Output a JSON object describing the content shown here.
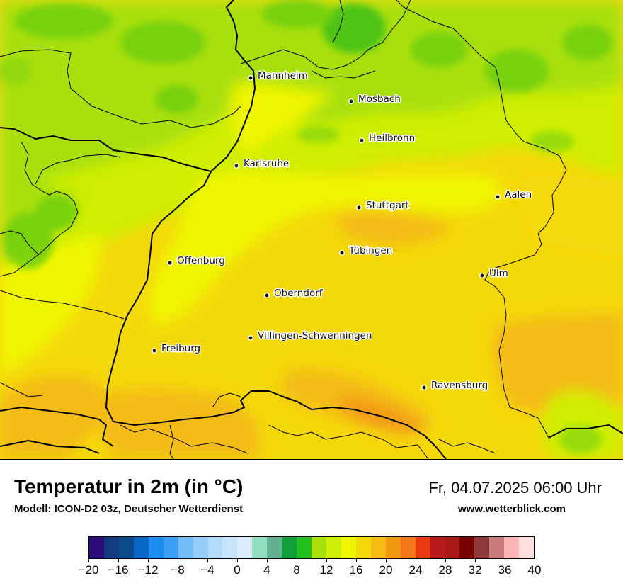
{
  "map": {
    "cities": [
      {
        "name": "Mannheim"
      },
      {
        "name": "Mosbach"
      },
      {
        "name": "Heilbronn"
      },
      {
        "name": "Karlsruhe"
      },
      {
        "name": "Aalen"
      },
      {
        "name": "Stuttgart"
      },
      {
        "name": "Tübingen"
      },
      {
        "name": "Offenburg"
      },
      {
        "name": "Ulm"
      },
      {
        "name": "Oberndorf"
      },
      {
        "name": "Villingen-Schwenningen"
      },
      {
        "name": "Freiburg"
      },
      {
        "name": "Ravensburg"
      }
    ]
  },
  "header": {
    "title": "Temperatur in 2m (in °C)",
    "subtitle": "Modell: ICON-D2 03z, Deutscher Wetterdienst",
    "datetime": "Fr, 04.07.2025 06:00 Uhr",
    "website": "www.wetterblick.com"
  },
  "legend": {
    "colors": [
      "#2b0a7a",
      "#163a80",
      "#0a4a8c",
      "#0a66c4",
      "#1b8cf0",
      "#3aa0f5",
      "#74bcf7",
      "#96ccf7",
      "#b3daf8",
      "#c8e4fa",
      "#dcecfb",
      "#92dcc0",
      "#62b08f",
      "#0fa03a",
      "#22bf1e",
      "#a8e00a",
      "#cfee05",
      "#f0f600",
      "#f4d90a",
      "#f4bb12",
      "#f39612",
      "#f2761a",
      "#e83a0e",
      "#bb1a1a",
      "#a81818",
      "#7a0000",
      "#8e3a3a",
      "#c97a7a",
      "#f9b5b5",
      "#ffdede"
    ],
    "tick_labels": [
      "−20",
      "−16",
      "−12",
      "−8",
      "−4",
      "0",
      "4",
      "8",
      "12",
      "16",
      "20",
      "24",
      "28",
      "32",
      "36",
      "40"
    ],
    "min": -20,
    "max": 40
  },
  "colors": {
    "warm_orange": "#f4bb12",
    "yellow": "#f0f600",
    "lime": "#cfee05",
    "green": "#a8e00a",
    "deep_orange": "#f39612"
  }
}
